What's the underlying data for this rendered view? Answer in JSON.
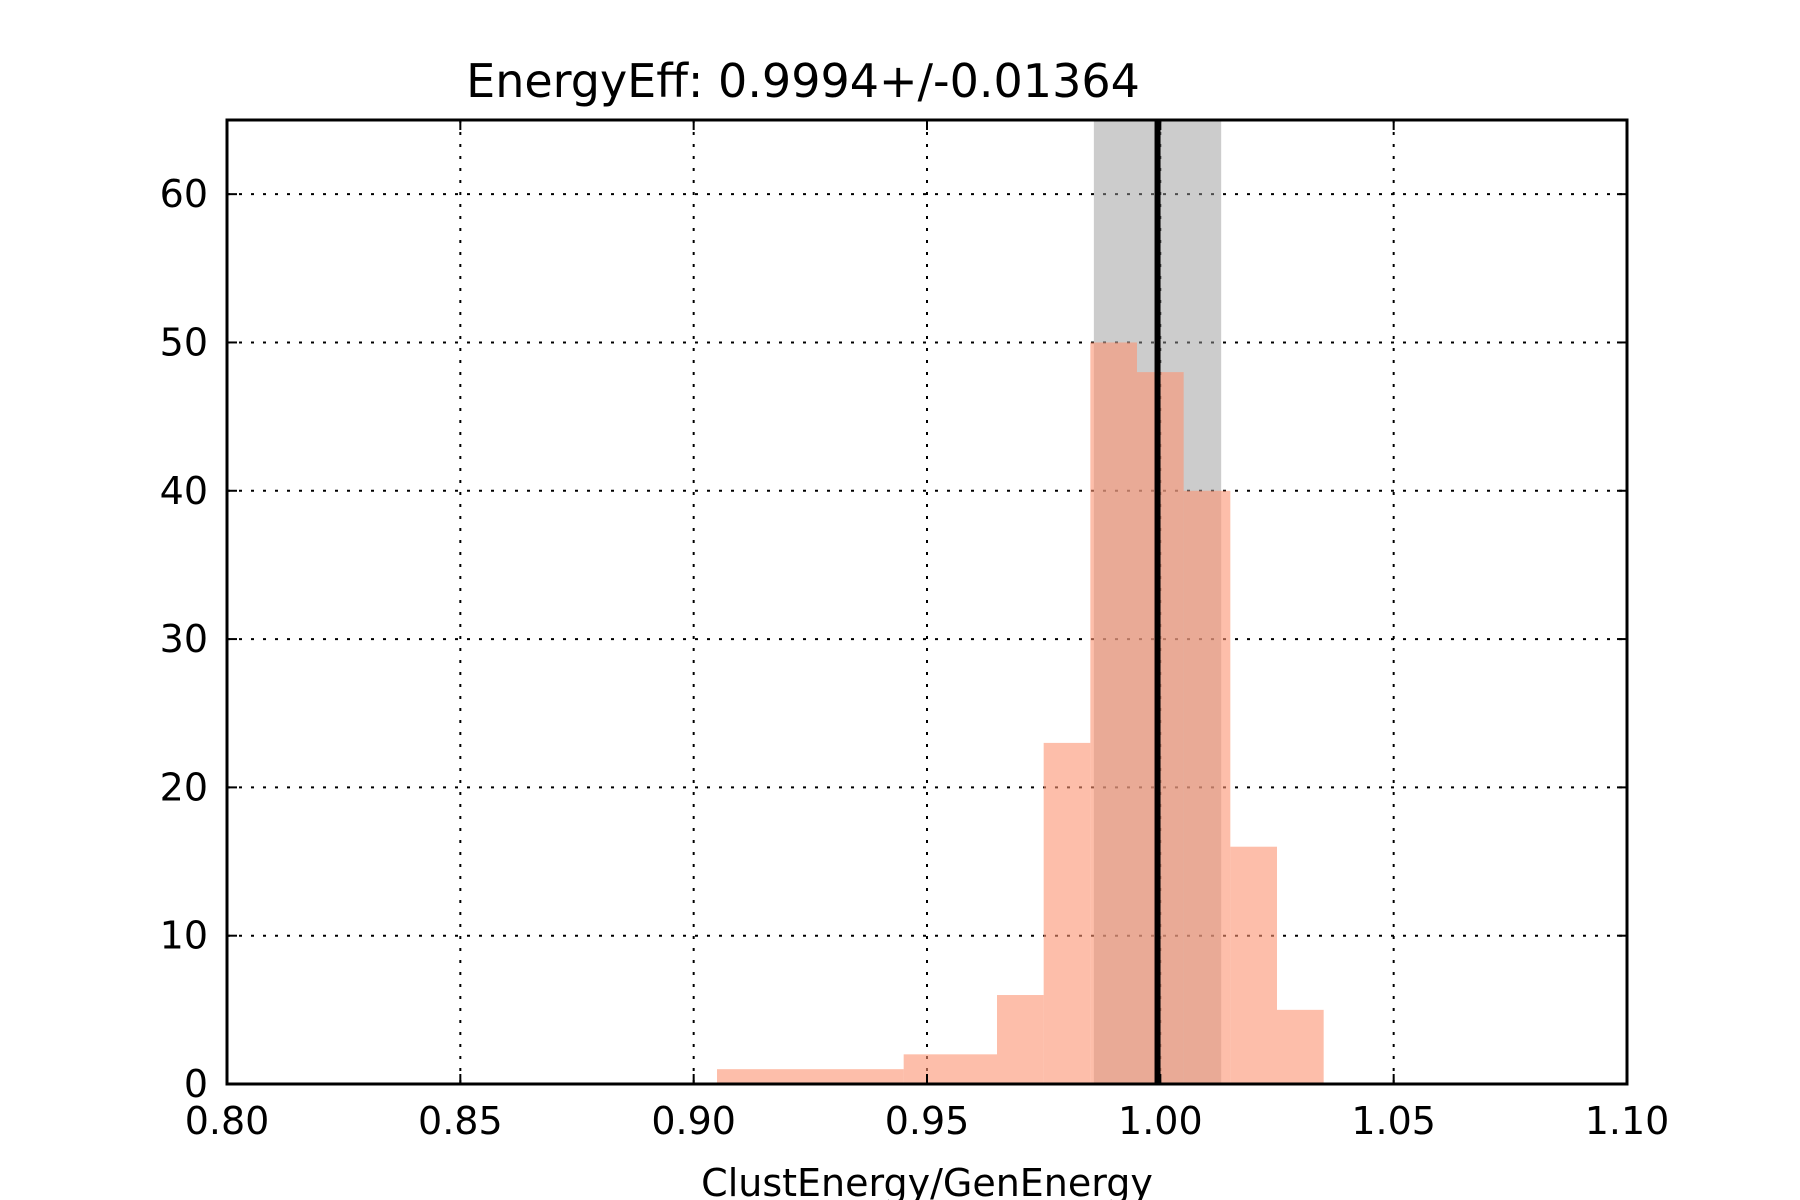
{
  "chart_data": {
    "type": "bar",
    "title": "EnergyEff: 0.9994+/-0.01364",
    "xlabel": "ClustEnergy/GenEnergy",
    "ylabel": "",
    "xlim": [
      0.8,
      1.1
    ],
    "ylim": [
      0,
      65
    ],
    "xticks": [
      "0.80",
      "0.85",
      "0.90",
      "0.95",
      "1.00",
      "1.05",
      "1.10"
    ],
    "yticks": [
      "0",
      "10",
      "20",
      "30",
      "40",
      "50",
      "60"
    ],
    "grid": true,
    "bins": [
      {
        "x0": 0.905,
        "x1": 0.945,
        "count": 1
      },
      {
        "x0": 0.945,
        "x1": 0.965,
        "count": 2
      },
      {
        "x0": 0.965,
        "x1": 0.975,
        "count": 6
      },
      {
        "x0": 0.975,
        "x1": 0.985,
        "count": 23
      },
      {
        "x0": 0.985,
        "x1": 0.995,
        "count": 50
      },
      {
        "x0": 0.995,
        "x1": 1.005,
        "count": 48
      },
      {
        "x0": 1.005,
        "x1": 1.015,
        "count": 40
      },
      {
        "x0": 1.015,
        "x1": 1.025,
        "count": 16
      },
      {
        "x0": 1.025,
        "x1": 1.035,
        "count": 5
      }
    ],
    "mean": 0.9994,
    "sigma": 0.01364,
    "colors": {
      "bars": "#fc9272",
      "band": "#999999",
      "mean_line": "#000000"
    }
  }
}
